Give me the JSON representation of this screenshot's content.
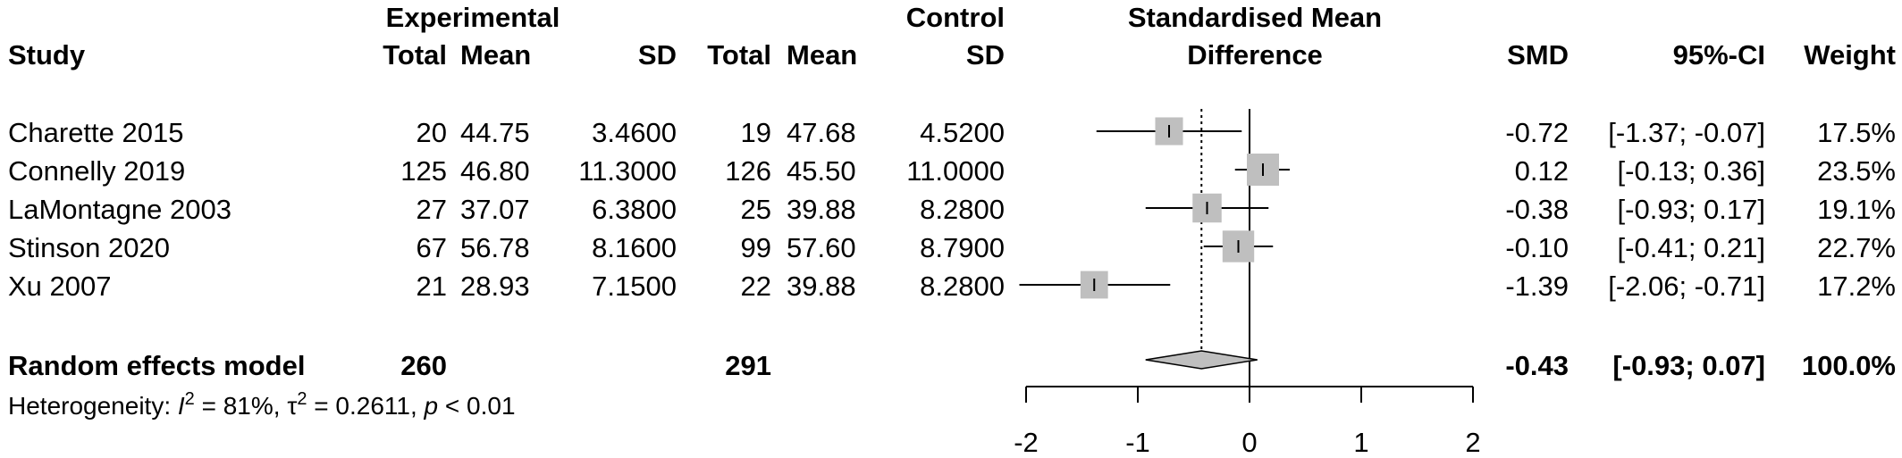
{
  "chart_data": {
    "type": "forest",
    "headers": {
      "study": "Study",
      "experimental_group": "Experimental",
      "control_group": "Control",
      "effect_line1": "Standardised Mean",
      "effect_line2": "Difference",
      "total": "Total",
      "mean": "Mean",
      "sd": "SD",
      "smd": "SMD",
      "ci": "95%-CI",
      "weight": "Weight"
    },
    "studies": [
      {
        "study": "Charette 2015",
        "exp_total": "20",
        "exp_mean": "44.75",
        "exp_sd": "3.4600",
        "ctrl_total": "19",
        "ctrl_mean": "47.68",
        "ctrl_sd": "4.5200",
        "smd_text": "-0.72",
        "ci_text": "[-1.37; -0.07]",
        "weight_text": "17.5%",
        "smd": -0.72,
        "lower": -1.37,
        "upper": -0.07,
        "weight": 17.5
      },
      {
        "study": "Connelly 2019",
        "exp_total": "125",
        "exp_mean": "46.80",
        "exp_sd": "11.3000",
        "ctrl_total": "126",
        "ctrl_mean": "45.50",
        "ctrl_sd": "11.0000",
        "smd_text": "0.12",
        "ci_text": "[-0.13; 0.36]",
        "weight_text": "23.5%",
        "smd": 0.12,
        "lower": -0.13,
        "upper": 0.36,
        "weight": 23.5
      },
      {
        "study": "LaMontagne 2003",
        "exp_total": "27",
        "exp_mean": "37.07",
        "exp_sd": "6.3800",
        "ctrl_total": "25",
        "ctrl_mean": "39.88",
        "ctrl_sd": "8.2800",
        "smd_text": "-0.38",
        "ci_text": "[-0.93; 0.17]",
        "weight_text": "19.1%",
        "smd": -0.38,
        "lower": -0.93,
        "upper": 0.17,
        "weight": 19.1
      },
      {
        "study": "Stinson 2020",
        "exp_total": "67",
        "exp_mean": "56.78",
        "exp_sd": "8.1600",
        "ctrl_total": "99",
        "ctrl_mean": "57.60",
        "ctrl_sd": "8.7900",
        "smd_text": "-0.10",
        "ci_text": "[-0.41; 0.21]",
        "weight_text": "22.7%",
        "smd": -0.1,
        "lower": -0.41,
        "upper": 0.21,
        "weight": 22.7
      },
      {
        "study": "Xu 2007",
        "exp_total": "21",
        "exp_mean": "28.93",
        "exp_sd": "7.1500",
        "ctrl_total": "22",
        "ctrl_mean": "39.88",
        "ctrl_sd": "8.2800",
        "smd_text": "-1.39",
        "ci_text": "[-2.06; -0.71]",
        "weight_text": "17.2%",
        "smd": -1.39,
        "lower": -2.06,
        "upper": -0.71,
        "weight": 17.2
      }
    ],
    "pooled": {
      "label": "Random effects model",
      "exp_total": "260",
      "ctrl_total": "291",
      "smd_text": "-0.43",
      "ci_text": "[-0.93; 0.07]",
      "weight_text": "100.0%",
      "smd": -0.43,
      "lower": -0.93,
      "upper": 0.07
    },
    "heterogeneity": {
      "prefix": "Heterogeneity: ",
      "i2_symbol": "I",
      "i2_sup": "2",
      "i2_value": " = 81%, ",
      "tau_symbol": "τ",
      "tau_sup": "2",
      "tau_value": " = 0.2611, ",
      "p_symbol": "p",
      "p_value": " < 0.01"
    },
    "x_axis": {
      "ticks": [
        -2,
        -1,
        0,
        1,
        2
      ],
      "tick_labels": [
        "-2",
        "-1",
        "0",
        "1",
        "2"
      ],
      "xlim": [
        -2,
        2
      ]
    },
    "reference_line": 0,
    "pooled_line": -0.43,
    "colors": {
      "square": "#bfbfbf",
      "diamond": "#bfbfbf",
      "line": "#000000"
    }
  }
}
